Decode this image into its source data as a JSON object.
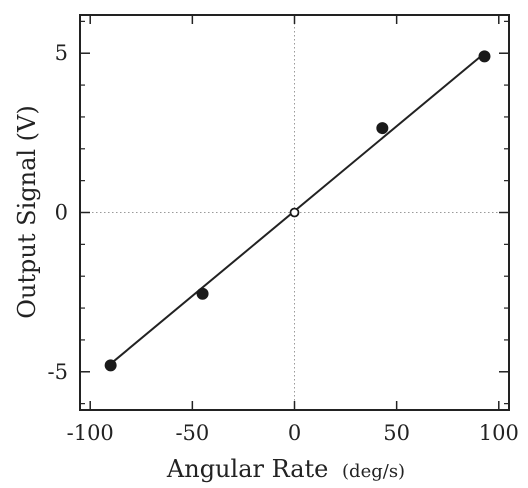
{
  "chart_data": {
    "type": "scatter",
    "xlabel": "Angular Rate",
    "xlabel_unit": "(deg/s)",
    "ylabel": "Output Signal  (V)",
    "xlim": [
      -105,
      105
    ],
    "ylim": [
      -6.2,
      6.2
    ],
    "xticks": [
      -100,
      -50,
      0,
      50,
      100
    ],
    "xtick_labels": [
      "-100",
      "-50",
      "0",
      "50",
      "100"
    ],
    "yticks": [
      -5,
      0,
      5
    ],
    "ytick_labels": [
      "-5",
      "0",
      "5"
    ],
    "grid": false,
    "zero_lines": true,
    "series": [
      {
        "points": [
          {
            "x": -90,
            "y": -4.8
          },
          {
            "x": -45,
            "y": -2.55
          },
          {
            "x": 0,
            "y": 0
          },
          {
            "x": 43,
            "y": 2.65
          },
          {
            "x": 93,
            "y": 4.9
          }
        ],
        "open_point_index": 2
      }
    ],
    "fit_line": {
      "x": [
        -90,
        93
      ],
      "y": [
        -4.75,
        5.0
      ]
    }
  }
}
